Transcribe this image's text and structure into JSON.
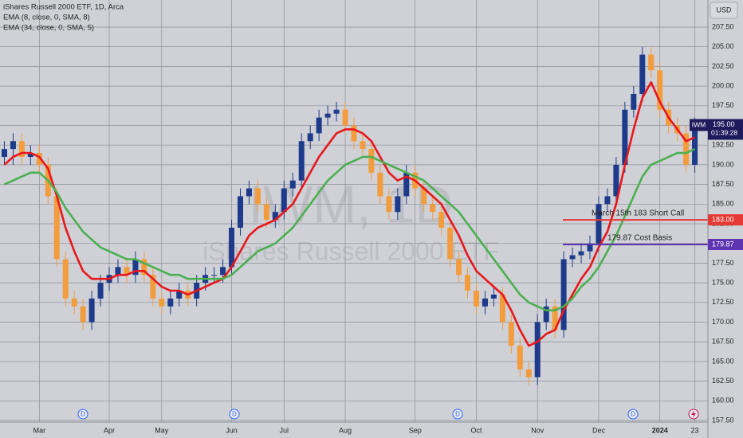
{
  "chart_data": {
    "type": "candlestick",
    "title": "iShares Russell 2000 ETF, 1D, Arca",
    "currency": "USD",
    "watermark": {
      "title": "IWM, 1D",
      "subtitle": "iShares Russell 2000 ETF"
    },
    "dividend_label": "D",
    "categories": [
      null,
      null,
      null,
      null,
      "Mar",
      null,
      null,
      null,
      null,
      null,
      null,
      null,
      "Apr",
      null,
      null,
      null,
      null,
      null,
      "May",
      null,
      null,
      null,
      null,
      null,
      null,
      null,
      "Jun",
      null,
      null,
      null,
      null,
      null,
      "Jul",
      null,
      null,
      null,
      null,
      null,
      null,
      "Aug",
      null,
      null,
      null,
      null,
      null,
      null,
      null,
      "Sep",
      null,
      null,
      null,
      null,
      null,
      null,
      "Oct",
      null,
      null,
      null,
      null,
      null,
      null,
      "Nov",
      null,
      null,
      null,
      null,
      null,
      null,
      "Dec",
      null,
      null,
      null,
      null,
      null,
      null,
      "2024",
      null,
      null,
      null,
      "23"
    ],
    "open": [
      191,
      192,
      193,
      191,
      191.5,
      190,
      186,
      178,
      173,
      172,
      170,
      173,
      175,
      176,
      177,
      176,
      178,
      176,
      173,
      172,
      173,
      174,
      173,
      175,
      176,
      176,
      177,
      182,
      186,
      187,
      185,
      183,
      184,
      187,
      188,
      193,
      194,
      196,
      196.5,
      197,
      195,
      193,
      192,
      189,
      186,
      184,
      186,
      189,
      187,
      185,
      184,
      182,
      178,
      176,
      174,
      172,
      173,
      173.5,
      170,
      167,
      164,
      163,
      170,
      172,
      169,
      178,
      178.5,
      179,
      180,
      185,
      186,
      190,
      197,
      199,
      204,
      202,
      197,
      195,
      194,
      190
    ],
    "high": [
      193,
      194,
      194,
      192.5,
      192.5,
      191,
      187,
      179,
      174,
      173,
      174,
      176,
      177,
      178,
      178,
      179,
      179,
      177,
      174,
      174,
      175,
      175,
      176,
      177,
      177,
      178,
      183,
      187,
      188,
      188,
      186,
      185,
      188,
      189,
      194,
      195,
      197,
      197.5,
      198,
      198,
      196,
      194,
      193,
      190,
      187,
      187,
      190,
      190,
      188,
      186,
      185,
      183,
      179,
      177,
      175,
      174,
      174.5,
      174.5,
      171,
      168,
      165,
      171,
      173,
      173,
      179,
      179.5,
      180,
      181,
      186,
      187,
      191,
      198,
      200,
      205,
      205,
      203,
      198,
      196,
      195,
      196
    ],
    "low": [
      190,
      190,
      190,
      190,
      189,
      185,
      177,
      172,
      171,
      169,
      169,
      172,
      174,
      175,
      175,
      175,
      175,
      172,
      171,
      171,
      172,
      172,
      172,
      174,
      175,
      175,
      176,
      181,
      185,
      184,
      182,
      182,
      183,
      186,
      187,
      192,
      193,
      195,
      195.5,
      194,
      192,
      191,
      188,
      185,
      183,
      183,
      185,
      186,
      184,
      183,
      181,
      177,
      175,
      173,
      171,
      171,
      172,
      169,
      166,
      163,
      162,
      162,
      169,
      168,
      168,
      177,
      177.5,
      178,
      179,
      184,
      185,
      189,
      196,
      198,
      201,
      196,
      194,
      193,
      189,
      189
    ],
    "close": [
      192,
      193,
      191,
      191.5,
      190,
      186,
      178,
      173,
      172,
      170,
      173,
      175,
      176,
      177,
      176,
      178,
      176,
      173,
      172,
      173,
      174,
      173,
      175,
      176,
      176,
      177,
      182,
      186,
      187,
      185,
      183,
      184,
      187,
      188,
      193,
      194,
      196,
      196.5,
      197,
      195,
      193,
      192,
      189,
      186,
      184,
      186,
      189,
      187,
      185,
      184,
      182,
      178,
      176,
      174,
      172,
      173,
      173.5,
      170,
      167,
      164,
      163,
      170,
      172,
      169,
      178,
      178.5,
      179,
      180,
      185,
      186,
      190,
      197,
      199,
      204,
      202,
      197,
      195,
      194,
      190,
      195
    ],
    "up_color": "#1e3a8a",
    "down_color": "#f39c3d",
    "series": [
      {
        "name": "EMA (8, close, 0, SMA, 8)",
        "color": "#e8171b",
        "values": [
          190,
          191,
          191.5,
          191.5,
          191,
          189.5,
          186,
          182,
          179,
          176.5,
          175.5,
          175.5,
          175.5,
          176,
          176,
          176.5,
          176.5,
          175.5,
          174.5,
          174,
          174,
          173.5,
          174,
          174.5,
          175,
          175.5,
          177,
          179,
          181,
          182,
          182.5,
          183,
          184,
          185,
          187,
          189,
          191,
          192.5,
          194,
          194.5,
          194.5,
          194,
          193,
          191,
          189,
          188,
          188.5,
          188,
          187,
          186,
          185,
          183,
          181,
          178.5,
          176.5,
          175.5,
          174.5,
          173.5,
          171.5,
          169,
          167,
          167.5,
          168.5,
          169,
          171.5,
          173.5,
          175.5,
          177,
          179.5,
          181.5,
          185,
          190,
          194.5,
          198.5,
          200.5,
          198,
          196,
          194.5,
          193,
          193.5
        ]
      },
      {
        "name": "EMA (34, close, 0, SMA, 5)",
        "color": "#4caf50",
        "values": [
          187.5,
          188,
          188.5,
          189,
          189,
          188,
          186.5,
          184.5,
          183,
          181.5,
          180.5,
          179.5,
          179,
          178.5,
          178,
          178,
          177.5,
          177,
          176.5,
          176,
          176,
          175.5,
          175.5,
          175.5,
          175.5,
          175.5,
          176,
          177,
          178,
          179,
          179.5,
          180,
          181,
          182,
          183.5,
          185,
          186.5,
          188,
          189,
          190,
          190.5,
          191,
          191,
          190.5,
          190,
          189.5,
          189,
          188.5,
          188,
          187,
          186,
          185,
          184,
          182.5,
          181,
          179.5,
          178,
          176.5,
          175,
          173.5,
          172.5,
          172,
          171.5,
          171.5,
          172,
          173,
          174.5,
          175.5,
          177,
          179,
          181,
          183.5,
          186,
          188.5,
          190,
          190.5,
          191,
          191.5,
          191.5,
          192
        ]
      }
    ],
    "last_price": {
      "value": 195,
      "label": "195.00",
      "countdown": "01:39:28",
      "symbol": "IWM"
    },
    "horizontal_lines": [
      {
        "value": 183,
        "label": "183.00",
        "text": "March 15th 183 Short Call",
        "color": "#e53935"
      },
      {
        "value": 179.87,
        "label": "179.87",
        "text": "179.87 Cost Basis",
        "color": "#5e35b1"
      }
    ],
    "ylim": [
      157.3,
      210.94
    ],
    "yticks": [
      {
        "value": 157.5,
        "label": "157.50"
      },
      {
        "value": 160,
        "label": "160.00"
      },
      {
        "value": 162.5,
        "label": "162.50"
      },
      {
        "value": 165,
        "label": "165.00"
      },
      {
        "value": 167.5,
        "label": "167.50"
      },
      {
        "value": 170,
        "label": "170.00"
      },
      {
        "value": 172.5,
        "label": "172.50"
      },
      {
        "value": 175,
        "label": "175.00"
      },
      {
        "value": 177.5,
        "label": "177.50"
      },
      {
        "value": 180,
        "label": "180.00"
      },
      {
        "value": 182.5,
        "label": "182.50"
      },
      {
        "value": 185,
        "label": "185.00"
      },
      {
        "value": 187.5,
        "label": "187.50"
      },
      {
        "value": 190,
        "label": "190.00"
      },
      {
        "value": 192.5,
        "label": "192.50"
      },
      {
        "value": 195,
        "label": "195.00"
      },
      {
        "value": 197.5,
        "label": "197.50"
      },
      {
        "value": 200,
        "label": "200.00"
      },
      {
        "value": 202.5,
        "label": "202.50"
      },
      {
        "value": 205,
        "label": "205.00"
      },
      {
        "value": 207.5,
        "label": "207.50"
      }
    ],
    "grid": true
  }
}
